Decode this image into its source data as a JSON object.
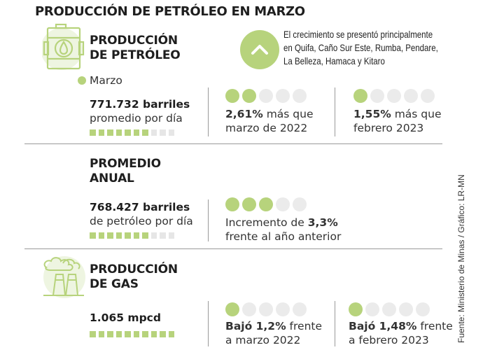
{
  "title": "PRODUCCIÓN DE PETRÓLEO EN MARZO",
  "colors": {
    "accent": "#b7d37c",
    "inactive": "#e6e6e6",
    "text": "#1e1e1e"
  },
  "oil": {
    "icon": "oil-barrel-icon",
    "heading_line1": "PRODUCCIÓN",
    "heading_line2": "DE PETRÓLEO",
    "note_icon": "chevron-up-icon",
    "note_lines": [
      "El crecimiento se presentó principalmente",
      "en Quifa, Caño Sur Este, Rumba, Pendare,",
      "La Belleza, Hamaca y Kitaro"
    ],
    "legend_label": "Marzo",
    "value": "771.732 barriles",
    "value_sub": "promedio por día",
    "squares_filled": 7,
    "squares_total": 10,
    "comparisons": [
      {
        "dots_filled": 2,
        "dots_total": 5,
        "bold": "2,61%",
        "rest": " más que",
        "line2": "marzo de 2022"
      },
      {
        "dots_filled": 1,
        "dots_total": 5,
        "bold": "1,55%",
        "rest": " más que",
        "line2": "febrero 2023"
      }
    ]
  },
  "annual": {
    "heading_line1": "PROMEDIO",
    "heading_line2": "ANUAL",
    "value": "768.427 barriles",
    "value_sub": "de petróleo por día",
    "squares_filled": 7,
    "squares_total": 10,
    "comparison": {
      "dots_filled": 3,
      "dots_total": 5,
      "pre": "Incremento de ",
      "bold": "3,3%",
      "line2": "frente al año anterior"
    }
  },
  "gas": {
    "icon": "factory-smoke-icon",
    "heading_line1": "PRODUCCIÓN",
    "heading_line2": "DE GAS",
    "value": "1.065 mpcd",
    "squares_filled": 10,
    "squares_total": 10,
    "comparisons": [
      {
        "dots_filled": 1,
        "dots_total": 5,
        "bold": "Bajó 1,2%",
        "rest": " frente",
        "line2": "a marzo 2022"
      },
      {
        "dots_filled": 1,
        "dots_total": 5,
        "bold": "Bajó 1,48%",
        "rest": " frente",
        "line2": "a febrero 2023"
      }
    ]
  },
  "source": "Fuente: Ministerio de Minas / Gráfico: LR-MN"
}
